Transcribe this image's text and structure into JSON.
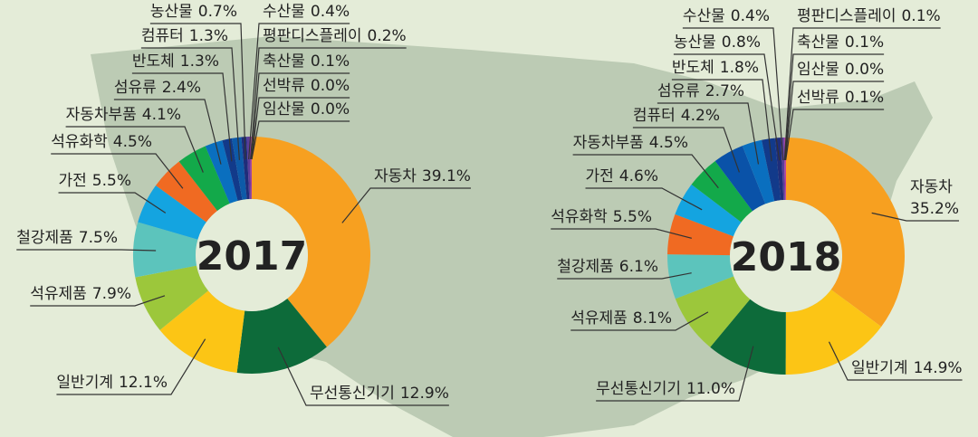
{
  "chart_data": [
    {
      "type": "donut",
      "center_label": "2017",
      "categories": [
        "자동차",
        "무선통신기기",
        "일반기계",
        "석유제품",
        "철강제품",
        "가전",
        "석유화학",
        "자동차부품",
        "섬유류",
        "반도체",
        "컴퓨터",
        "농산물",
        "수산물",
        "평판디스플레이",
        "축산물",
        "선박류",
        "임산물"
      ],
      "values": [
        39.1,
        12.9,
        12.1,
        7.9,
        7.5,
        5.5,
        4.5,
        4.1,
        2.4,
        1.3,
        1.3,
        0.7,
        0.4,
        0.2,
        0.1,
        0.0,
        0.0
      ],
      "value_labels": [
        "39.1%",
        "12.9%",
        "12.1%",
        "7.9%",
        "7.5%",
        "5.5%",
        "4.5%",
        "4.1%",
        "2.4%",
        "1.3%",
        "1.3%",
        "0.7%",
        "0.4%",
        "0.2%",
        "0.1%",
        "0.0%",
        "0.0%"
      ],
      "colors": [
        "#f7a020",
        "#0d6b3a",
        "#fcc515",
        "#9cc73b",
        "#5cc4bc",
        "#14a4e0",
        "#f06a22",
        "#13a94a",
        "#0a6fbf",
        "#123a8a",
        "#0d5aa8",
        "#1f2d7a",
        "#5a3d9a",
        "#8e3b9e",
        "#b03aa0",
        "#c2188b",
        "#d0309a"
      ]
    },
    {
      "type": "donut",
      "center_label": "2018",
      "categories": [
        "자동차",
        "일반기계",
        "무선통신기기",
        "석유제품",
        "철강제품",
        "석유화학",
        "가전",
        "자동차부품",
        "컴퓨터",
        "섬유류",
        "반도체",
        "농산물",
        "수산물",
        "평판디스플레이",
        "축산물",
        "임산물",
        "선박류"
      ],
      "values": [
        35.2,
        14.9,
        11.0,
        8.1,
        6.1,
        5.5,
        4.6,
        4.5,
        4.2,
        2.7,
        1.8,
        0.8,
        0.4,
        0.1,
        0.1,
        0.0,
        0.1
      ],
      "value_labels": [
        "35.2%",
        "14.9%",
        "11.0%",
        "8.1%",
        "6.1%",
        "5.5%",
        "4.6%",
        "4.5%",
        "4.2%",
        "2.7%",
        "1.8%",
        "0.8%",
        "0.4%",
        "0.1%",
        "0.1%",
        "0.0%",
        "0.1%"
      ],
      "colors": [
        "#f7a020",
        "#fcc515",
        "#0d6b3a",
        "#9cc73b",
        "#5cc4bc",
        "#f06a22",
        "#14a4e0",
        "#13a94a",
        "#0a52a8",
        "#0a6fbf",
        "#123a8a",
        "#1f2d7a",
        "#5a3d9a",
        "#8e3b9e",
        "#b03aa0",
        "#c2188b",
        "#d0309a"
      ]
    }
  ]
}
